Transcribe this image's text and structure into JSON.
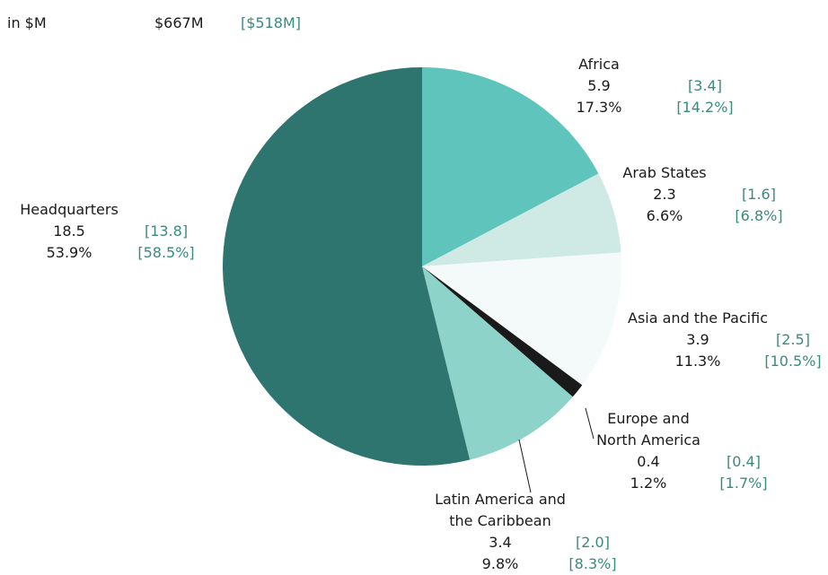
{
  "chart_data": {
    "type": "pie",
    "unit_label": "in $M",
    "total": 667,
    "total_label": "$667M",
    "prior_total": 518,
    "prior_total_label": "[$518M]",
    "categories": [
      "Africa",
      "Arab States",
      "Asia and the Pacific",
      "Europe and North America",
      "Latin America and the Caribbean",
      "Headquarters"
    ],
    "values": [
      5.9,
      2.3,
      3.9,
      0.4,
      3.4,
      18.5
    ],
    "percents": [
      17.3,
      6.6,
      11.3,
      1.2,
      9.8,
      53.9
    ],
    "percent_labels": [
      "17.3%",
      "6.6%",
      "11.3%",
      "1.2%",
      "9.8%",
      "53.9%"
    ],
    "prior_values": [
      3.4,
      1.6,
      2.5,
      0.4,
      2.0,
      13.8
    ],
    "prior_value_labels": [
      "[3.4]",
      "[1.6]",
      "[2.5]",
      "[0.4]",
      "[2.0]",
      "[13.8]"
    ],
    "prior_percents": [
      14.2,
      6.8,
      10.5,
      1.7,
      8.3,
      58.5
    ],
    "prior_percent_labels": [
      "[14.2%]",
      "[6.8%]",
      "[10.5%]",
      "[1.7%]",
      "[8.3%]",
      "[58.5%]"
    ],
    "colors": [
      "#5fc4bb",
      "#cfe9e5",
      "#f3faf9",
      "#1a1a1a",
      "#8dd3ca",
      "#2e7570"
    ]
  }
}
